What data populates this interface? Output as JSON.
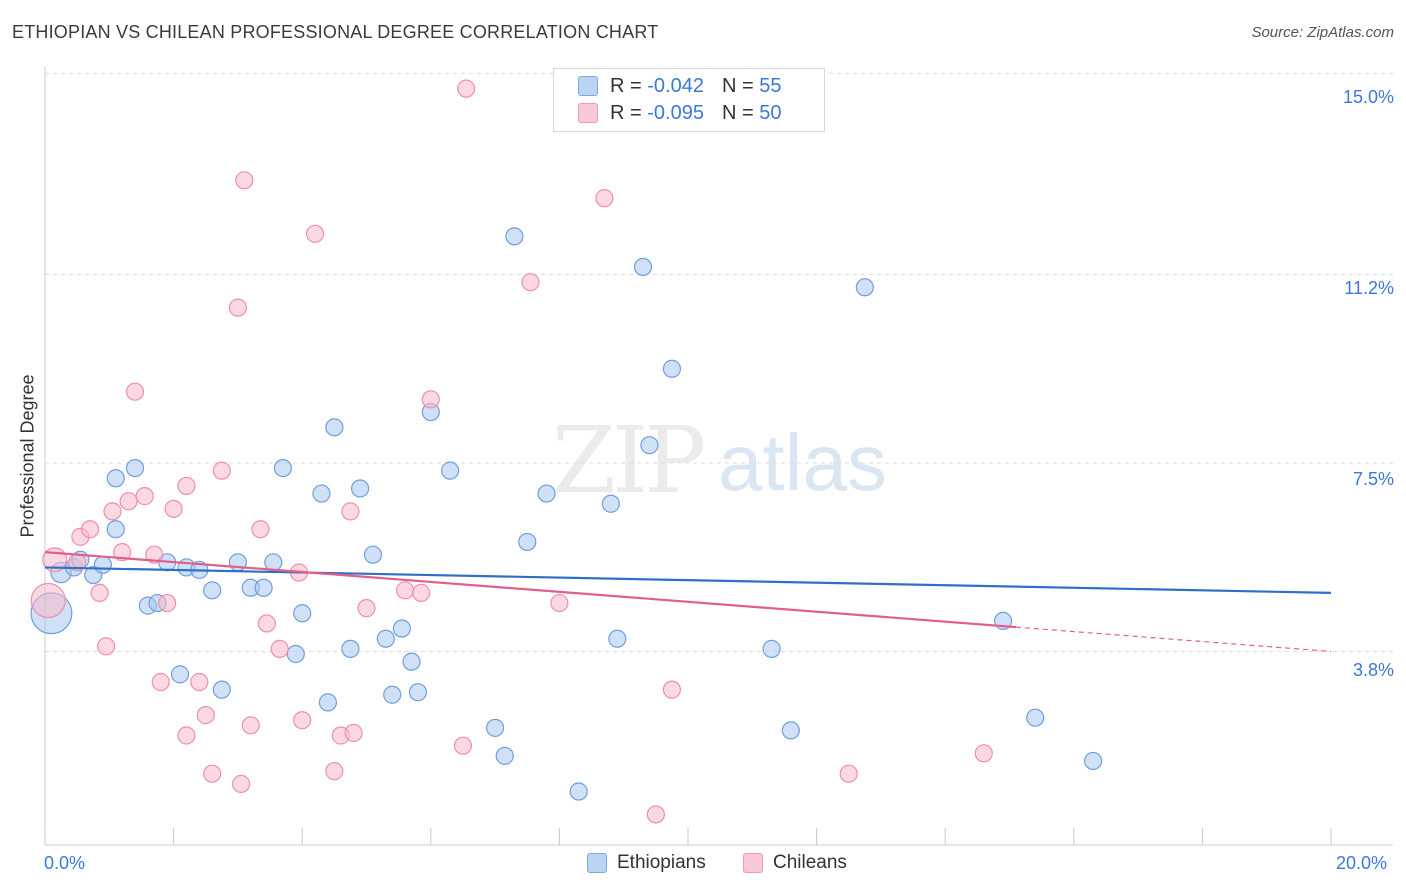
{
  "header": {
    "title": "ETHIOPIAN VS CHILEAN PROFESSIONAL DEGREE CORRELATION CHART",
    "source": "Source: ZipAtlas.com"
  },
  "legend": {
    "ethiopians": {
      "r_label": "R = ",
      "r_value": "-0.042",
      "n_label": "N = ",
      "n_value": "55"
    },
    "chileans": {
      "r_label": "R = ",
      "r_value": "-0.095",
      "n_label": "N = ",
      "n_value": "50"
    }
  },
  "bottom_legend": {
    "ethiopians": "Ethiopians",
    "chileans": "Chileans"
  },
  "colors": {
    "ethiopians_fill": "#a9c8f0",
    "ethiopians_stroke": "#6f9fdc",
    "ethiopians_line": "#2e6fc7",
    "chileans_fill": "#f7b8cb",
    "chileans_stroke": "#ee8fab",
    "chileans_line": "#e0608b",
    "tick_text": "#3c78d8",
    "grid": "#dddddd"
  },
  "chart_data": {
    "type": "scatter",
    "title": "ETHIOPIAN VS CHILEAN PROFESSIONAL DEGREE CORRELATION CHART",
    "xlabel": "",
    "ylabel": "Professional Degree",
    "xlim": [
      0,
      20
    ],
    "ylim": [
      0,
      15.5
    ],
    "x_tick_labels": [
      "0.0%",
      "20.0%"
    ],
    "y_ticks": [
      3.8,
      7.5,
      11.2,
      15.0
    ],
    "y_tick_labels": [
      "3.8%",
      "7.5%",
      "11.2%",
      "15.0%"
    ],
    "grid": true,
    "legend_position": "top-center",
    "series": [
      {
        "name": "Ethiopians",
        "r": -0.042,
        "n": 55,
        "trend": {
          "x": [
            0,
            20
          ],
          "y": [
            5.45,
            4.95
          ],
          "dashed_from_x": null
        },
        "points": [
          {
            "x": 0.1,
            "y": 4.55,
            "s": 2.4
          },
          {
            "x": 0.25,
            "y": 5.35,
            "s": 1.2
          },
          {
            "x": 0.45,
            "y": 5.45
          },
          {
            "x": 0.75,
            "y": 5.3
          },
          {
            "x": 0.55,
            "y": 5.6
          },
          {
            "x": 0.9,
            "y": 5.5
          },
          {
            "x": 1.1,
            "y": 6.2
          },
          {
            "x": 1.1,
            "y": 7.2
          },
          {
            "x": 1.4,
            "y": 7.4
          },
          {
            "x": 1.6,
            "y": 4.7
          },
          {
            "x": 1.75,
            "y": 4.75
          },
          {
            "x": 1.9,
            "y": 5.55
          },
          {
            "x": 2.2,
            "y": 5.45
          },
          {
            "x": 2.4,
            "y": 5.4
          },
          {
            "x": 2.6,
            "y": 5.0
          },
          {
            "x": 2.1,
            "y": 3.35
          },
          {
            "x": 2.75,
            "y": 3.05
          },
          {
            "x": 3.0,
            "y": 5.55
          },
          {
            "x": 3.2,
            "y": 5.05
          },
          {
            "x": 3.4,
            "y": 5.05
          },
          {
            "x": 3.55,
            "y": 5.55
          },
          {
            "x": 3.7,
            "y": 7.4
          },
          {
            "x": 3.9,
            "y": 3.75
          },
          {
            "x": 4.0,
            "y": 4.55
          },
          {
            "x": 4.3,
            "y": 6.9
          },
          {
            "x": 4.4,
            "y": 2.8
          },
          {
            "x": 4.5,
            "y": 8.2
          },
          {
            "x": 4.75,
            "y": 3.85
          },
          {
            "x": 4.9,
            "y": 7.0
          },
          {
            "x": 5.1,
            "y": 5.7
          },
          {
            "x": 5.3,
            "y": 4.05
          },
          {
            "x": 5.4,
            "y": 2.95
          },
          {
            "x": 5.55,
            "y": 4.25
          },
          {
            "x": 5.7,
            "y": 3.6
          },
          {
            "x": 5.8,
            "y": 3.0
          },
          {
            "x": 6.0,
            "y": 8.5
          },
          {
            "x": 6.3,
            "y": 7.35
          },
          {
            "x": 7.0,
            "y": 2.3
          },
          {
            "x": 7.15,
            "y": 1.75
          },
          {
            "x": 7.3,
            "y": 11.95
          },
          {
            "x": 7.5,
            "y": 5.95
          },
          {
            "x": 7.8,
            "y": 6.9
          },
          {
            "x": 8.3,
            "y": 1.05
          },
          {
            "x": 8.8,
            "y": 6.7
          },
          {
            "x": 8.9,
            "y": 4.05
          },
          {
            "x": 9.3,
            "y": 11.35
          },
          {
            "x": 9.4,
            "y": 7.85
          },
          {
            "x": 9.75,
            "y": 9.35
          },
          {
            "x": 11.3,
            "y": 3.85
          },
          {
            "x": 11.6,
            "y": 2.25
          },
          {
            "x": 12.75,
            "y": 10.95
          },
          {
            "x": 14.9,
            "y": 4.4
          },
          {
            "x": 15.4,
            "y": 2.5
          },
          {
            "x": 16.3,
            "y": 1.65
          }
        ]
      },
      {
        "name": "Chileans",
        "r": -0.095,
        "n": 50,
        "trend": {
          "x": [
            0,
            20
          ],
          "y": [
            5.75,
            3.8
          ],
          "dashed_from_x": 15.1
        },
        "points": [
          {
            "x": 0.05,
            "y": 4.8,
            "s": 2.0
          },
          {
            "x": 0.15,
            "y": 5.6,
            "s": 1.4
          },
          {
            "x": 0.5,
            "y": 5.55
          },
          {
            "x": 0.55,
            "y": 6.05
          },
          {
            "x": 0.7,
            "y": 6.2
          },
          {
            "x": 0.85,
            "y": 4.95
          },
          {
            "x": 0.95,
            "y": 3.9
          },
          {
            "x": 1.05,
            "y": 6.55
          },
          {
            "x": 1.2,
            "y": 5.75
          },
          {
            "x": 1.3,
            "y": 6.75
          },
          {
            "x": 1.4,
            "y": 8.9
          },
          {
            "x": 1.55,
            "y": 6.85
          },
          {
            "x": 1.7,
            "y": 5.7
          },
          {
            "x": 1.8,
            "y": 3.2
          },
          {
            "x": 1.9,
            "y": 4.75
          },
          {
            "x": 2.0,
            "y": 6.6
          },
          {
            "x": 2.2,
            "y": 7.05
          },
          {
            "x": 2.2,
            "y": 2.15
          },
          {
            "x": 2.4,
            "y": 3.2
          },
          {
            "x": 2.5,
            "y": 2.55
          },
          {
            "x": 2.6,
            "y": 1.4
          },
          {
            "x": 2.75,
            "y": 7.35
          },
          {
            "x": 3.0,
            "y": 10.55
          },
          {
            "x": 3.05,
            "y": 1.2
          },
          {
            "x": 3.1,
            "y": 13.05
          },
          {
            "x": 3.2,
            "y": 2.35
          },
          {
            "x": 3.35,
            "y": 6.2
          },
          {
            "x": 3.45,
            "y": 4.35
          },
          {
            "x": 3.65,
            "y": 3.85
          },
          {
            "x": 3.95,
            "y": 5.35
          },
          {
            "x": 4.0,
            "y": 2.45
          },
          {
            "x": 4.2,
            "y": 12.0
          },
          {
            "x": 4.5,
            "y": 1.45
          },
          {
            "x": 4.6,
            "y": 2.15
          },
          {
            "x": 4.75,
            "y": 6.55
          },
          {
            "x": 4.8,
            "y": 2.2
          },
          {
            "x": 5.0,
            "y": 4.65
          },
          {
            "x": 5.6,
            "y": 5.0
          },
          {
            "x": 5.85,
            "y": 4.95
          },
          {
            "x": 6.0,
            "y": 8.75
          },
          {
            "x": 6.5,
            "y": 1.95
          },
          {
            "x": 6.55,
            "y": 14.85
          },
          {
            "x": 7.55,
            "y": 11.05
          },
          {
            "x": 8.0,
            "y": 4.75
          },
          {
            "x": 8.7,
            "y": 12.7
          },
          {
            "x": 9.5,
            "y": 0.6
          },
          {
            "x": 9.75,
            "y": 3.05
          },
          {
            "x": 12.5,
            "y": 1.4
          },
          {
            "x": 14.6,
            "y": 1.8
          }
        ]
      }
    ]
  }
}
